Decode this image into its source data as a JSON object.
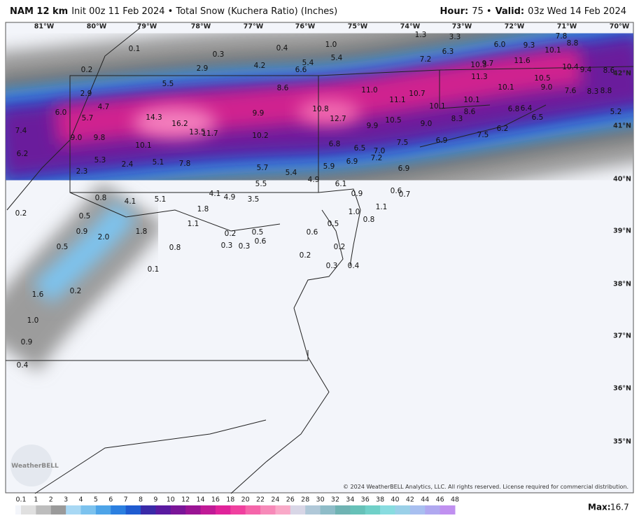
{
  "header": {
    "model": "NAM 12 km",
    "subtitle": "Init 00z 11 Feb 2024 • Total Snow (Kuchera Ratio) (Inches)",
    "hour_label": "Hour:",
    "hour": "75 •",
    "valid_label": "Valid:",
    "valid": "03z Wed 14 Feb 2024"
  },
  "longitudes": [
    "81°W",
    "80°W",
    "79°W",
    "78°W",
    "77°W",
    "76°W",
    "75°W",
    "74°W",
    "73°W",
    "72°W",
    "71°W",
    "70°W"
  ],
  "latitudes": [
    "42°N",
    "41°N",
    "40°N",
    "39°N",
    "38°N",
    "37°N",
    "36°N",
    "35°N"
  ],
  "points": [
    "0.1",
    "0.3",
    "0.4",
    "1.0",
    "1.3",
    "3.3",
    "7.8",
    "8.8",
    "0.2",
    "2.9",
    "4.2",
    "5.4",
    "5.4",
    "6.6",
    "6.3",
    "6.0",
    "9.3",
    "10.1",
    "7.2",
    "10.3",
    "9.7",
    "11.6",
    "10.4",
    "9.4",
    "8.6",
    "2.9",
    "5.5",
    "8.6",
    "11.0",
    "10.7",
    "11.3",
    "10.1",
    "10.5",
    "7.6",
    "8.3",
    "8.8",
    "6.0",
    "4.7",
    "5.7",
    "14.3",
    "16.2",
    "9.9",
    "10.8",
    "11.1",
    "10.1",
    "10.1",
    "9.0",
    "8.6",
    "8.3",
    "6.8",
    "6.4",
    "6.5",
    "5.2",
    "7.4",
    "13.5",
    "11.7",
    "12.7",
    "10.5",
    "9.9",
    "9.0",
    "7.5",
    "6.2",
    "9.0",
    "9.8",
    "10.1",
    "10.2",
    "6.8",
    "6.5",
    "7.0",
    "7.5",
    "6.9",
    "6.2",
    "5.3",
    "2.4",
    "5.1",
    "7.8",
    "7.2",
    "6.9",
    "5.7",
    "5.4",
    "5.9",
    "6.9",
    "2.3",
    "5.5",
    "4.9",
    "6.1",
    "0.8",
    "4.1",
    "5.1",
    "4.1",
    "4.9",
    "3.5",
    "0.9",
    "0.6",
    "0.7",
    "0.2",
    "1.8",
    "1.0",
    "1.1",
    "0.5",
    "1.1",
    "0.5",
    "0.8",
    "0.9",
    "1.8",
    "0.2",
    "0.5",
    "0.6",
    "2.0",
    "0.6",
    "0.5",
    "0.8",
    "0.3",
    "0.3",
    "0.2",
    "0.2",
    "0.3",
    "0.4",
    "0.1",
    "0.2",
    "1.6",
    "1.0",
    "0.9",
    "0.4"
  ],
  "colorbar": {
    "labels": [
      "0.1",
      "1",
      "2",
      "3",
      "4",
      "5",
      "6",
      "7",
      "8",
      "9",
      "10",
      "12",
      "14",
      "16",
      "18",
      "20",
      "22",
      "24",
      "26",
      "28",
      "30",
      "32",
      "34",
      "36",
      "38",
      "40",
      "42",
      "44",
      "46",
      "48"
    ]
  },
  "copyright": "© 2024 WeatherBELL Analytics, LLC. All rights reserved. License required for commercial distribution.",
  "logo": "WeatherBELL",
  "max_label": "Max:",
  "max_value": "16.7"
}
